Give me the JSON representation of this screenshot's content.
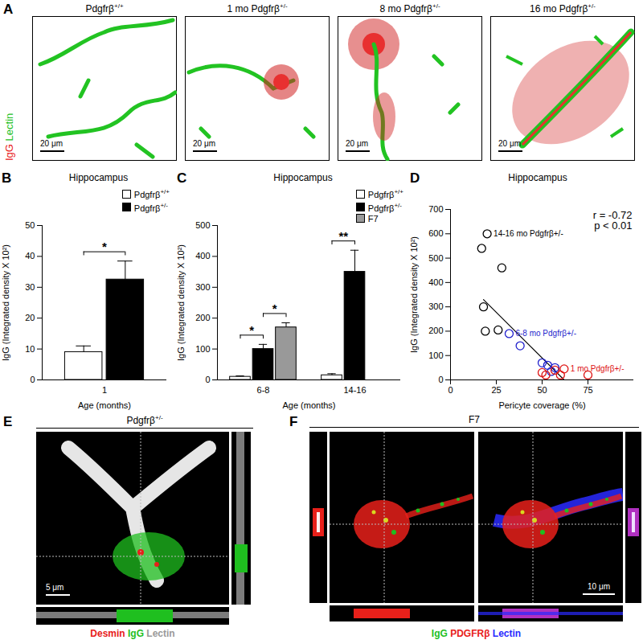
{
  "images": {
    "A": {
      "letter": "A",
      "legend": [
        {
          "text": "IgG",
          "color": "#e8201a"
        },
        {
          "text": "Lectin",
          "color": "#1fbf1f"
        }
      ],
      "panels": [
        {
          "title": "Pdgfrβ+/+",
          "scale_bar": "20 μm"
        },
        {
          "title": "1 mo Pdgfrβ+/-",
          "scale_bar": "20 μm"
        },
        {
          "title": "8 mo Pdgfrβ+/-",
          "scale_bar": "20 μm"
        },
        {
          "title": "16 mo Pdgfrβ+/-",
          "scale_bar": "20 μm"
        }
      ]
    },
    "E": {
      "letter": "E",
      "title": "Pdgfrβ+/-",
      "scale_bar": "5 μm",
      "legend": [
        {
          "text": "Desmin",
          "color": "#e8201a"
        },
        {
          "text": "IgG",
          "color": "#1fbf1f"
        },
        {
          "text": "Lectin",
          "color": "#9a9a9a"
        }
      ]
    },
    "F": {
      "letter": "F",
      "title": "F7",
      "scale_bar": "10 μm",
      "legend": [
        {
          "text": "IgG",
          "color": "#1fbf1f"
        },
        {
          "text": "PDGFRβ",
          "color": "#e8201a"
        },
        {
          "text": "Lectin",
          "color": "#2a2aff"
        }
      ]
    }
  },
  "chart_data": [
    {
      "type": "bar",
      "letter": "B",
      "title": "Hippocampus",
      "x_label": "Age (months)",
      "y_label": "IgG (Integrated density X 10²)",
      "categories": [
        "1"
      ],
      "series": [
        {
          "name": "Pdgfrβ+/+",
          "color": "#ffffff",
          "values": [
            9
          ],
          "errors": [
            2
          ]
        },
        {
          "name": "Pdgfrβ+/-",
          "color": "#000000",
          "values": [
            32.5
          ],
          "errors": [
            6
          ]
        }
      ],
      "ylim": [
        0,
        50
      ],
      "yticks": [
        0,
        10,
        20,
        30,
        40,
        50
      ],
      "significance": [
        {
          "category": "1",
          "from": "Pdgfrβ+/+",
          "to": "Pdgfrβ+/-",
          "text": "*"
        }
      ],
      "legend": "top-right"
    },
    {
      "type": "bar",
      "letter": "C",
      "title": "Hippocampus",
      "x_label": "Age (months)",
      "y_label": "IgG (Integrated density X 10²)",
      "categories": [
        "6-8",
        "14-16"
      ],
      "series": [
        {
          "name": "Pdgfrβ+/+",
          "color": "#ffffff",
          "values": [
            10,
            15
          ],
          "errors": [
            3,
            5
          ]
        },
        {
          "name": "Pdgfrβ+/-",
          "color": "#000000",
          "values": [
            100,
            350
          ],
          "errors": [
            15,
            70
          ]
        },
        {
          "name": "F7",
          "color": "#999999",
          "values": [
            170,
            null
          ],
          "errors": [
            15,
            null
          ]
        }
      ],
      "ylim": [
        0,
        500
      ],
      "yticks": [
        0,
        100,
        200,
        300,
        400,
        500
      ],
      "significance": [
        {
          "category": "6-8",
          "from": "Pdgfrβ+/+",
          "to": "Pdgfrβ+/-",
          "text": "*"
        },
        {
          "category": "6-8",
          "from": "Pdgfrβ+/-",
          "to": "F7",
          "text": "*"
        },
        {
          "category": "14-16",
          "from": "Pdgfrβ+/+",
          "to": "Pdgfrβ+/-",
          "text": "**"
        }
      ],
      "legend": "top-right"
    },
    {
      "type": "scatter",
      "letter": "D",
      "title": "Hippocampus",
      "x_label": "Pericyte coverage (%)",
      "y_label": "IgG (Integrated density X 10²)",
      "series": [
        {
          "name": "14-16 mo Pdgfrβ+/-",
          "color": "#000000",
          "marker": "circle-open",
          "x": [
            20,
            17,
            28,
            18,
            19,
            26
          ],
          "y": [
            600,
            540,
            460,
            300,
            200,
            205
          ]
        },
        {
          "name": "6-8 mo Pdgfrβ+/-",
          "color": "#1f1fcc",
          "marker": "circle-open",
          "x": [
            32,
            38,
            50,
            53,
            55,
            57
          ],
          "y": [
            190,
            140,
            70,
            60,
            35,
            50
          ]
        },
        {
          "name": "1 mo Pdgfrβ+/-",
          "color": "#dd1111",
          "marker": "circle-open",
          "x": [
            50,
            52,
            57,
            60,
            75,
            62
          ],
          "y": [
            30,
            20,
            40,
            20,
            20,
            45
          ]
        }
      ],
      "fit": {
        "x": [
          18,
          62
        ],
        "y": [
          330,
          0
        ]
      },
      "annotations": [
        "r = -0.72",
        "p < 0.01"
      ],
      "xlim": [
        0,
        100
      ],
      "xticks": [
        0,
        25,
        50,
        75
      ],
      "ylim": [
        0,
        700
      ],
      "yticks": [
        0,
        100,
        200,
        300,
        400,
        500,
        600,
        700
      ]
    }
  ]
}
